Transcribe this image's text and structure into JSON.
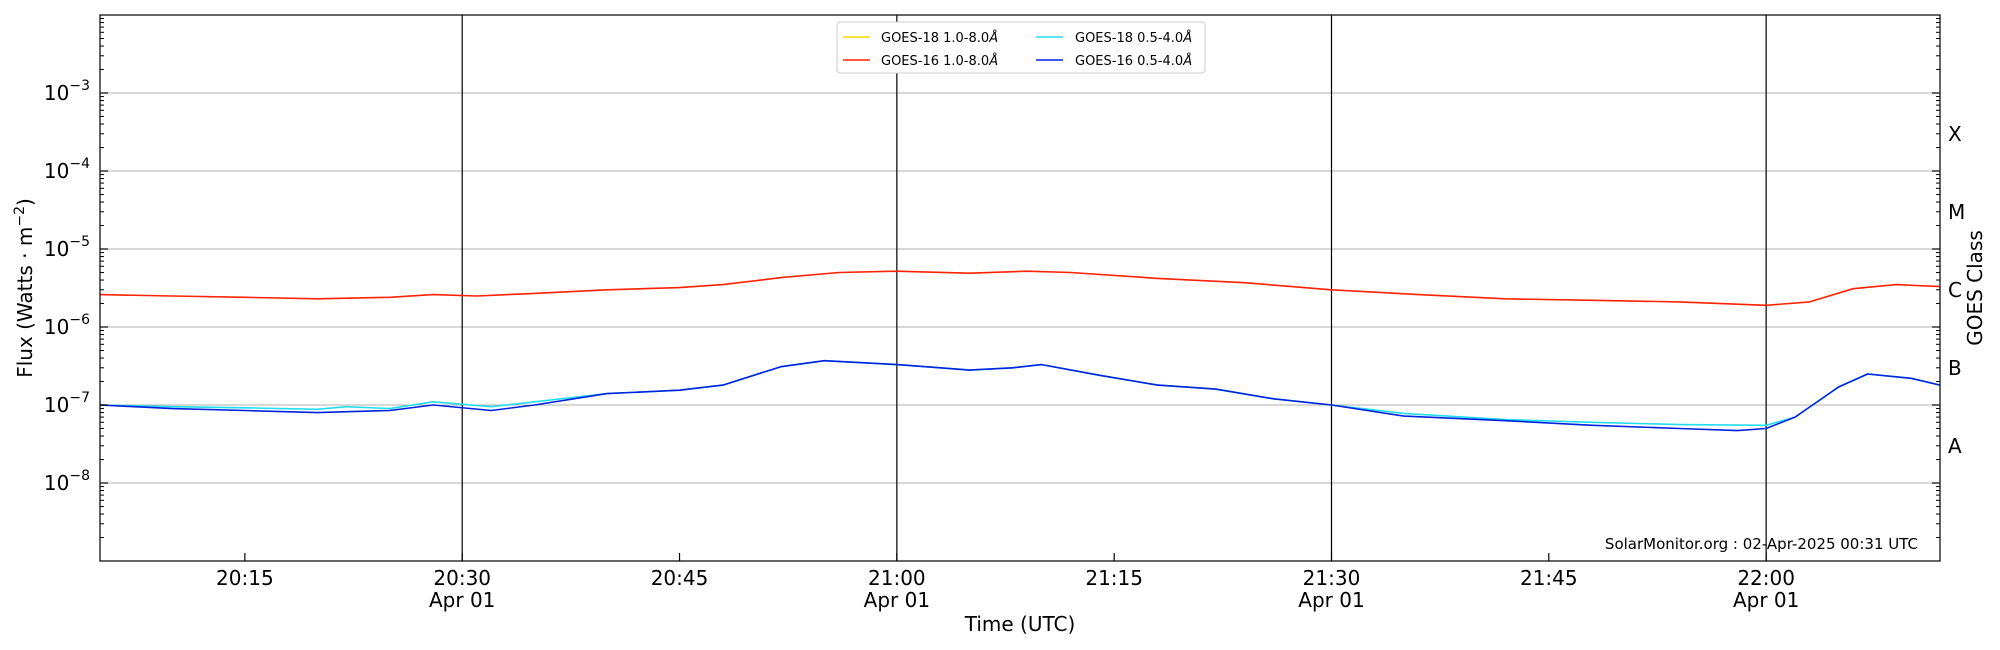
{
  "chart_data": {
    "type": "line",
    "title": "",
    "xlabel": "Time (UTC)",
    "ylabel": "Flux (Watts · m⁻²)",
    "ylabel_base": "Flux (Watts · m",
    "ylabel_exp": "−2",
    "ylabel_close": ")",
    "y2label": "GOES Class",
    "yscale": "log",
    "ylim": [
      1e-09,
      0.01
    ],
    "xlim": [
      "20:05",
      "22:12"
    ],
    "grid": "horizontal",
    "legend_position": "top-center",
    "y_ticks": [
      {
        "exp": "−3",
        "value": 0.001
      },
      {
        "exp": "−4",
        "value": 0.0001
      },
      {
        "exp": "−5",
        "value": 1e-05
      },
      {
        "exp": "−6",
        "value": 1e-06
      },
      {
        "exp": "−7",
        "value": 1e-07
      },
      {
        "exp": "−8",
        "value": 1e-08
      }
    ],
    "y_tick_base": "10",
    "x_ticks": [
      {
        "time": "20:15",
        "label": "20:15",
        "date": ""
      },
      {
        "time": "20:30",
        "label": "20:30",
        "date": "Apr 01"
      },
      {
        "time": "20:45",
        "label": "20:45",
        "date": ""
      },
      {
        "time": "21:00",
        "label": "21:00",
        "date": "Apr 01"
      },
      {
        "time": "21:15",
        "label": "21:15",
        "date": ""
      },
      {
        "time": "21:30",
        "label": "21:30",
        "date": "Apr 01"
      },
      {
        "time": "21:45",
        "label": "21:45",
        "date": ""
      },
      {
        "time": "22:00",
        "label": "22:00",
        "date": "Apr 01"
      }
    ],
    "vlines": [
      "20:30",
      "21:00",
      "21:30",
      "22:00"
    ],
    "goes_classes": [
      {
        "label": "X",
        "value": 0.0003
      },
      {
        "label": "M",
        "value": 3e-05
      },
      {
        "label": "C",
        "value": 3e-06
      },
      {
        "label": "B",
        "value": 3e-07
      },
      {
        "label": "A",
        "value": 3e-08
      }
    ],
    "annotation": "SolarMonitor.org : 02-Apr-2025 00:31 UTC",
    "series": [
      {
        "name": "GOES-18 1.0-8.0Å",
        "legend_label": "GOES-18 1.0-8.0",
        "color": "#FFD700",
        "x": [],
        "y": []
      },
      {
        "name": "GOES-16 1.0-8.0Å",
        "legend_label": "GOES-16 1.0-8.0",
        "color": "#FF2200",
        "x": [
          "20:05",
          "20:10",
          "20:15",
          "20:20",
          "20:25",
          "20:28",
          "20:31",
          "20:35",
          "20:40",
          "20:45",
          "20:48",
          "20:52",
          "20:56",
          "21:00",
          "21:05",
          "21:09",
          "21:12",
          "21:18",
          "21:24",
          "21:30",
          "21:36",
          "21:42",
          "21:48",
          "21:54",
          "22:00",
          "22:03",
          "22:06",
          "22:09",
          "22:12"
        ],
        "y": [
          2.6e-06,
          2.5e-06,
          2.4e-06,
          2.3e-06,
          2.4e-06,
          2.6e-06,
          2.5e-06,
          2.7e-06,
          3e-06,
          3.2e-06,
          3.5e-06,
          4.3e-06,
          5e-06,
          5.2e-06,
          4.9e-06,
          5.2e-06,
          5e-06,
          4.2e-06,
          3.7e-06,
          3e-06,
          2.6e-06,
          2.3e-06,
          2.2e-06,
          2.1e-06,
          1.9e-06,
          2.1e-06,
          3.1e-06,
          3.5e-06,
          3.3e-06
        ]
      },
      {
        "name": "GOES-18 0.5-4.0Å",
        "legend_label": "GOES-18 0.5-4.0",
        "color": "#22DDEE",
        "x": [
          "20:05",
          "20:10",
          "20:15",
          "20:20",
          "20:22",
          "20:25",
          "20:28",
          "20:32",
          "20:35",
          "20:40",
          "20:45",
          "20:48",
          "20:52",
          "20:55",
          "21:00",
          "21:03",
          "21:05",
          "21:08",
          "21:10",
          "21:14",
          "21:18",
          "21:22",
          "21:26",
          "21:30",
          "21:35",
          "21:42",
          "21:48",
          "21:54",
          "22:00",
          "22:02",
          "22:05",
          "22:07",
          "22:10",
          "22:12"
        ],
        "y": [
          1e-07,
          9.5e-08,
          9.2e-08,
          8.8e-08,
          9.5e-08,
          9e-08,
          1.1e-07,
          9.5e-08,
          1.1e-07,
          1.4e-07,
          1.55e-07,
          1.8e-07,
          3.1e-07,
          3.7e-07,
          3.3e-07,
          3e-07,
          2.8e-07,
          3e-07,
          3.3e-07,
          2.4e-07,
          1.8e-07,
          1.6e-07,
          1.2e-07,
          1e-07,
          7.8e-08,
          6.5e-08,
          6e-08,
          5.6e-08,
          5.5e-08,
          7e-08,
          1.7e-07,
          2.5e-07,
          2.2e-07,
          1.8e-07
        ]
      },
      {
        "name": "GOES-16 0.5-4.0Å",
        "legend_label": "GOES-16 0.5-4.0",
        "color": "#0022DD",
        "x": [
          "20:05",
          "20:10",
          "20:15",
          "20:20",
          "20:25",
          "20:28",
          "20:32",
          "20:35",
          "20:40",
          "20:45",
          "20:48",
          "20:52",
          "20:55",
          "21:00",
          "21:03",
          "21:05",
          "21:08",
          "21:10",
          "21:14",
          "21:18",
          "21:22",
          "21:26",
          "21:30",
          "21:35",
          "21:42",
          "21:48",
          "21:54",
          "21:58",
          "22:00",
          "22:02",
          "22:05",
          "22:07",
          "22:10",
          "22:12"
        ],
        "y": [
          1e-07,
          9e-08,
          8.5e-08,
          8e-08,
          8.5e-08,
          1e-07,
          8.5e-08,
          1e-07,
          1.4e-07,
          1.55e-07,
          1.8e-07,
          3.1e-07,
          3.7e-07,
          3.3e-07,
          3e-07,
          2.8e-07,
          3e-07,
          3.3e-07,
          2.4e-07,
          1.8e-07,
          1.6e-07,
          1.2e-07,
          1e-07,
          7.2e-08,
          6.3e-08,
          5.5e-08,
          5e-08,
          4.7e-08,
          5e-08,
          7e-08,
          1.7e-07,
          2.5e-07,
          2.2e-07,
          1.8e-07
        ]
      }
    ]
  }
}
